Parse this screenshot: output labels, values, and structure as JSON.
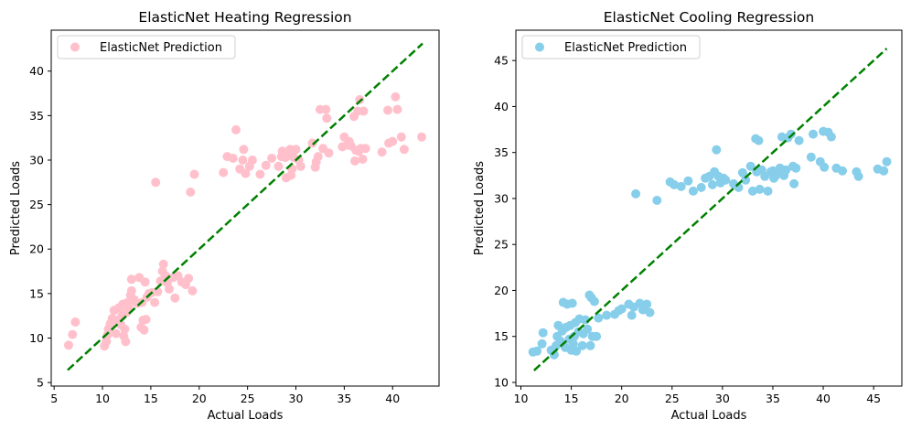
{
  "chart_data": [
    {
      "type": "scatter",
      "title": "ElasticNet Heating Regression",
      "xlabel": "Actual Loads",
      "ylabel": "Predicted Loads",
      "xlim": [
        4.7,
        44.8
      ],
      "ylim": [
        4.6,
        44.6
      ],
      "xticks": [
        5,
        10,
        15,
        20,
        25,
        30,
        35,
        40
      ],
      "yticks": [
        5,
        10,
        15,
        20,
        25,
        30,
        35,
        40
      ],
      "grid": false,
      "legend_position": "top-left",
      "ideal_line": {
        "x": [
          6.4,
          43.1
        ],
        "y": [
          6.4,
          43.1
        ],
        "color": "#008000",
        "style": "dashed"
      },
      "series": [
        {
          "name": "ElasticNet Prediction",
          "color": "#ffc0cb",
          "points": [
            [
              6.5,
              9.2
            ],
            [
              6.9,
              10.4
            ],
            [
              7.2,
              11.8
            ],
            [
              10.2,
              9.1
            ],
            [
              10.4,
              9.6
            ],
            [
              10.5,
              10.3
            ],
            [
              10.6,
              11.0
            ],
            [
              10.8,
              11.6
            ],
            [
              11.0,
              12.2
            ],
            [
              11.2,
              13.1
            ],
            [
              11.4,
              10.5
            ],
            [
              11.5,
              12.0
            ],
            [
              11.7,
              13.4
            ],
            [
              11.9,
              11.5
            ],
            [
              12.0,
              12.5
            ],
            [
              12.1,
              13.8
            ],
            [
              12.2,
              10.2
            ],
            [
              12.3,
              11.0
            ],
            [
              12.4,
              9.6
            ],
            [
              12.5,
              12.9
            ],
            [
              12.6,
              14.0
            ],
            [
              12.7,
              13.5
            ],
            [
              12.9,
              14.8
            ],
            [
              13.0,
              15.3
            ],
            [
              13.0,
              16.6
            ],
            [
              13.3,
              14.3
            ],
            [
              13.6,
              13.9
            ],
            [
              13.8,
              16.8
            ],
            [
              14.0,
              11.2
            ],
            [
              14.1,
              14.0
            ],
            [
              14.2,
              12.0
            ],
            [
              14.3,
              10.9
            ],
            [
              14.4,
              16.3
            ],
            [
              14.5,
              12.1
            ],
            [
              14.6,
              14.6
            ],
            [
              14.8,
              15.0
            ],
            [
              15.1,
              15.1
            ],
            [
              15.4,
              14.0
            ],
            [
              15.5,
              27.5
            ],
            [
              15.7,
              15.2
            ],
            [
              16.0,
              16.4
            ],
            [
              16.2,
              17.5
            ],
            [
              16.3,
              18.3
            ],
            [
              16.5,
              17.0
            ],
            [
              16.7,
              16.2
            ],
            [
              16.9,
              15.5
            ],
            [
              17.3,
              16.8
            ],
            [
              17.5,
              14.5
            ],
            [
              17.8,
              17.0
            ],
            [
              18.2,
              16.3
            ],
            [
              18.6,
              16.0
            ],
            [
              18.9,
              16.7
            ],
            [
              19.1,
              26.4
            ],
            [
              19.3,
              15.3
            ],
            [
              19.5,
              28.4
            ],
            [
              22.5,
              28.6
            ],
            [
              22.9,
              30.4
            ],
            [
              23.5,
              30.2
            ],
            [
              23.8,
              33.4
            ],
            [
              24.2,
              29.0
            ],
            [
              24.5,
              30.0
            ],
            [
              24.6,
              31.2
            ],
            [
              24.8,
              28.5
            ],
            [
              25.2,
              29.3
            ],
            [
              25.5,
              30.0
            ],
            [
              26.3,
              28.4
            ],
            [
              26.9,
              29.4
            ],
            [
              27.5,
              30.2
            ],
            [
              28.2,
              29.3
            ],
            [
              28.5,
              30.4
            ],
            [
              28.6,
              31.0
            ],
            [
              28.9,
              30.3
            ],
            [
              29.0,
              28.0
            ],
            [
              29.2,
              30.5
            ],
            [
              29.4,
              31.2
            ],
            [
              29.5,
              28.3
            ],
            [
              29.6,
              29.0
            ],
            [
              29.8,
              30.3
            ],
            [
              30.0,
              31.2
            ],
            [
              30.3,
              30.0
            ],
            [
              30.5,
              29.3
            ],
            [
              31.7,
              31.9
            ],
            [
              32.0,
              29.2
            ],
            [
              32.1,
              29.8
            ],
            [
              32.3,
              30.4
            ],
            [
              32.5,
              35.7
            ],
            [
              32.8,
              31.3
            ],
            [
              33.1,
              35.7
            ],
            [
              33.2,
              34.7
            ],
            [
              33.4,
              30.8
            ],
            [
              34.8,
              31.5
            ],
            [
              35.0,
              32.6
            ],
            [
              35.3,
              31.7
            ],
            [
              35.5,
              32.1
            ],
            [
              35.7,
              31.6
            ],
            [
              36.0,
              34.9
            ],
            [
              36.1,
              29.9
            ],
            [
              36.2,
              31.1
            ],
            [
              36.4,
              35.5
            ],
            [
              36.5,
              31.0
            ],
            [
              36.6,
              36.8
            ],
            [
              36.7,
              31.3
            ],
            [
              36.9,
              30.1
            ],
            [
              37.0,
              35.5
            ],
            [
              37.2,
              31.3
            ],
            [
              38.9,
              30.9
            ],
            [
              39.5,
              35.6
            ],
            [
              39.6,
              31.9
            ],
            [
              40.0,
              32.1
            ],
            [
              40.3,
              37.1
            ],
            [
              40.5,
              35.7
            ],
            [
              40.9,
              32.6
            ],
            [
              41.2,
              31.2
            ],
            [
              43.0,
              32.6
            ]
          ]
        }
      ]
    },
    {
      "type": "scatter",
      "title": "ElasticNet Cooling Regression",
      "xlabel": "Actual Loads",
      "ylabel": "Predicted Loads",
      "xlim": [
        9.5,
        47.8
      ],
      "ylim": [
        9.6,
        48.3
      ],
      "xticks": [
        10,
        15,
        20,
        25,
        30,
        35,
        40,
        45
      ],
      "yticks": [
        10,
        15,
        20,
        25,
        30,
        35,
        40,
        45
      ],
      "grid": false,
      "legend_position": "top-left",
      "ideal_line": {
        "x": [
          11.3,
          46.3
        ],
        "y": [
          11.3,
          46.3
        ],
        "color": "#008000",
        "style": "dashed"
      },
      "series": [
        {
          "name": "ElasticNet Prediction",
          "color": "#87ceeb",
          "points": [
            [
              11.2,
              13.3
            ],
            [
              11.6,
              13.4
            ],
            [
              12.1,
              14.2
            ],
            [
              12.2,
              15.4
            ],
            [
              13.0,
              13.5
            ],
            [
              13.3,
              13.0
            ],
            [
              13.5,
              14.0
            ],
            [
              13.6,
              15.0
            ],
            [
              13.7,
              16.2
            ],
            [
              13.9,
              14.5
            ],
            [
              14.1,
              15.6
            ],
            [
              14.2,
              18.7
            ],
            [
              14.4,
              13.8
            ],
            [
              14.5,
              16.0
            ],
            [
              14.6,
              18.5
            ],
            [
              14.8,
              14.7
            ],
            [
              14.9,
              16.2
            ],
            [
              15.0,
              13.5
            ],
            [
              15.1,
              18.6
            ],
            [
              15.2,
              14.2
            ],
            [
              15.3,
              15.0
            ],
            [
              15.4,
              16.5
            ],
            [
              15.5,
              13.4
            ],
            [
              15.7,
              15.5
            ],
            [
              15.8,
              16.9
            ],
            [
              16.1,
              14.0
            ],
            [
              16.2,
              15.3
            ],
            [
              16.4,
              16.8
            ],
            [
              16.6,
              15.8
            ],
            [
              16.8,
              19.5
            ],
            [
              16.9,
              14.0
            ],
            [
              17.0,
              19.2
            ],
            [
              17.1,
              15.0
            ],
            [
              17.3,
              18.8
            ],
            [
              17.5,
              15.0
            ],
            [
              17.7,
              17.0
            ],
            [
              18.5,
              17.3
            ],
            [
              19.3,
              17.4
            ],
            [
              19.7,
              17.8
            ],
            [
              20.0,
              18.0
            ],
            [
              20.7,
              18.5
            ],
            [
              21.0,
              17.3
            ],
            [
              21.2,
              18.2
            ],
            [
              21.4,
              30.5
            ],
            [
              21.8,
              18.6
            ],
            [
              22.1,
              17.9
            ],
            [
              22.5,
              18.5
            ],
            [
              22.8,
              17.6
            ],
            [
              23.5,
              29.8
            ],
            [
              24.8,
              31.8
            ],
            [
              25.2,
              31.5
            ],
            [
              25.9,
              31.3
            ],
            [
              26.6,
              31.9
            ],
            [
              27.1,
              30.8
            ],
            [
              27.9,
              31.2
            ],
            [
              28.3,
              32.2
            ],
            [
              28.7,
              32.4
            ],
            [
              29.0,
              31.5
            ],
            [
              29.2,
              32.9
            ],
            [
              29.4,
              35.3
            ],
            [
              29.6,
              32.4
            ],
            [
              29.8,
              31.7
            ],
            [
              30.1,
              32.2
            ],
            [
              30.3,
              32.0
            ],
            [
              31.1,
              31.6
            ],
            [
              31.6,
              31.2
            ],
            [
              32.0,
              32.8
            ],
            [
              32.3,
              32.0
            ],
            [
              32.8,
              33.5
            ],
            [
              33.0,
              30.8
            ],
            [
              33.3,
              36.5
            ],
            [
              33.4,
              32.9
            ],
            [
              33.6,
              36.3
            ],
            [
              33.7,
              31.0
            ],
            [
              33.9,
              33.1
            ],
            [
              34.2,
              32.4
            ],
            [
              34.5,
              30.8
            ],
            [
              34.8,
              32.9
            ],
            [
              35.0,
              33.0
            ],
            [
              35.1,
              32.2
            ],
            [
              35.3,
              32.5
            ],
            [
              35.5,
              32.8
            ],
            [
              35.7,
              33.3
            ],
            [
              35.9,
              36.7
            ],
            [
              36.1,
              32.5
            ],
            [
              36.3,
              33.1
            ],
            [
              36.5,
              36.6
            ],
            [
              36.8,
              37.0
            ],
            [
              37.0,
              33.5
            ],
            [
              37.1,
              31.6
            ],
            [
              37.3,
              33.3
            ],
            [
              37.6,
              36.3
            ],
            [
              38.8,
              34.5
            ],
            [
              39.0,
              37.0
            ],
            [
              39.7,
              34.0
            ],
            [
              40.0,
              37.3
            ],
            [
              40.1,
              33.4
            ],
            [
              40.5,
              37.2
            ],
            [
              40.8,
              36.7
            ],
            [
              41.3,
              33.3
            ],
            [
              41.9,
              33.0
            ],
            [
              43.3,
              32.9
            ],
            [
              43.5,
              32.4
            ],
            [
              45.4,
              33.2
            ],
            [
              46.0,
              33.0
            ],
            [
              46.3,
              34.0
            ]
          ]
        }
      ]
    }
  ]
}
